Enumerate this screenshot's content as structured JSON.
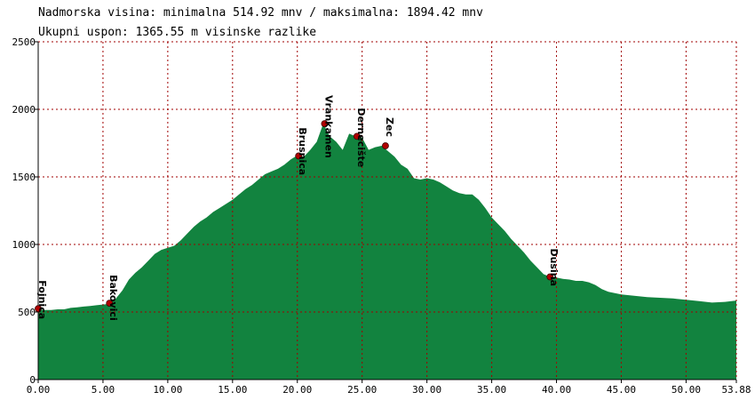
{
  "header": {
    "line1": "Nadmorska visina: minimalna 514.92 mnv / maksimalna: 1894.42 mnv",
    "line2": "Ukupni uspon: 1365.55 m visinske razlike"
  },
  "colors": {
    "fill": "#12833f",
    "grid": "#a00000",
    "waypoint": "#b00000",
    "axis": "#000000"
  },
  "chart_data": {
    "type": "area",
    "title": "",
    "xlabel": "",
    "ylabel": "",
    "xlim": [
      0,
      53.88
    ],
    "ylim": [
      0,
      2500
    ],
    "grid": true,
    "x_ticks": [
      0,
      5,
      10,
      15,
      20,
      25,
      30,
      35,
      40,
      45,
      50,
      53.88
    ],
    "x_tick_labels": [
      "0.00",
      "5.00",
      "10.00",
      "15.00",
      "20.00",
      "25.00",
      "30.00",
      "35.00",
      "40.00",
      "45.00",
      "50.00",
      "53.88"
    ],
    "y_ticks": [
      0,
      500,
      1000,
      1500,
      2000,
      2500
    ],
    "y_tick_labels": [
      "0",
      "500",
      "1000",
      "1500",
      "2000",
      "2500"
    ],
    "series": [
      {
        "x": [
          0,
          0.5,
          1.0,
          1.5,
          2.0,
          2.5,
          3.0,
          3.5,
          4.0,
          4.5,
          5.0,
          5.5,
          6.0,
          6.5,
          7.0,
          7.5,
          8.0,
          8.5,
          9.0,
          9.5,
          10.0,
          10.5,
          11.0,
          11.5,
          12.0,
          12.5,
          13.0,
          13.5,
          14.0,
          14.5,
          15.0,
          15.5,
          16.0,
          16.5,
          17.0,
          17.5,
          18.0,
          18.5,
          19.0,
          19.5,
          20.0,
          20.5,
          21.0,
          21.5,
          22.0,
          22.5,
          23.0,
          23.5,
          24.0,
          24.5,
          25.0,
          25.5,
          26.0,
          26.5,
          27.0,
          27.5,
          28.0,
          28.5,
          29.0,
          29.5,
          30.0,
          30.5,
          31.0,
          31.5,
          32.0,
          32.5,
          33.0,
          33.5,
          34.0,
          34.5,
          35.0,
          35.5,
          36.0,
          36.5,
          37.0,
          37.5,
          38.0,
          38.5,
          39.0,
          39.5,
          40.0,
          40.5,
          41.0,
          41.5,
          42.0,
          42.5,
          43.0,
          43.5,
          44.0,
          44.5,
          45.0,
          46.0,
          47.0,
          48.0,
          49.0,
          50.0,
          51.0,
          52.0,
          53.0,
          53.88
        ],
        "y": [
          520,
          515,
          515,
          520,
          520,
          530,
          535,
          540,
          545,
          550,
          555,
          560,
          600,
          660,
          740,
          790,
          830,
          880,
          930,
          960,
          975,
          990,
          1030,
          1080,
          1130,
          1170,
          1200,
          1240,
          1270,
          1300,
          1330,
          1370,
          1410,
          1440,
          1480,
          1520,
          1540,
          1560,
          1590,
          1630,
          1660,
          1650,
          1700,
          1760,
          1894,
          1800,
          1760,
          1700,
          1820,
          1800,
          1790,
          1700,
          1720,
          1730,
          1690,
          1650,
          1590,
          1560,
          1490,
          1480,
          1490,
          1480,
          1460,
          1430,
          1400,
          1380,
          1370,
          1370,
          1330,
          1270,
          1200,
          1150,
          1100,
          1040,
          990,
          940,
          880,
          830,
          780,
          760,
          755,
          745,
          740,
          730,
          730,
          720,
          700,
          670,
          650,
          640,
          630,
          620,
          610,
          605,
          600,
          590,
          580,
          570,
          575,
          585
        ]
      }
    ],
    "waypoints": [
      {
        "name": "Fojnica",
        "x": 0.0,
        "y": 525
      },
      {
        "name": "Bakovici",
        "x": 5.5,
        "y": 565
      },
      {
        "name": "Brusnica",
        "x": 20.1,
        "y": 1655
      },
      {
        "name": "Vrankamen",
        "x": 22.1,
        "y": 1894
      },
      {
        "name": "Dernecište",
        "x": 24.6,
        "y": 1800
      },
      {
        "name": "Zec",
        "x": 26.8,
        "y": 1730
      },
      {
        "name": "Dusina",
        "x": 39.5,
        "y": 760
      }
    ]
  }
}
